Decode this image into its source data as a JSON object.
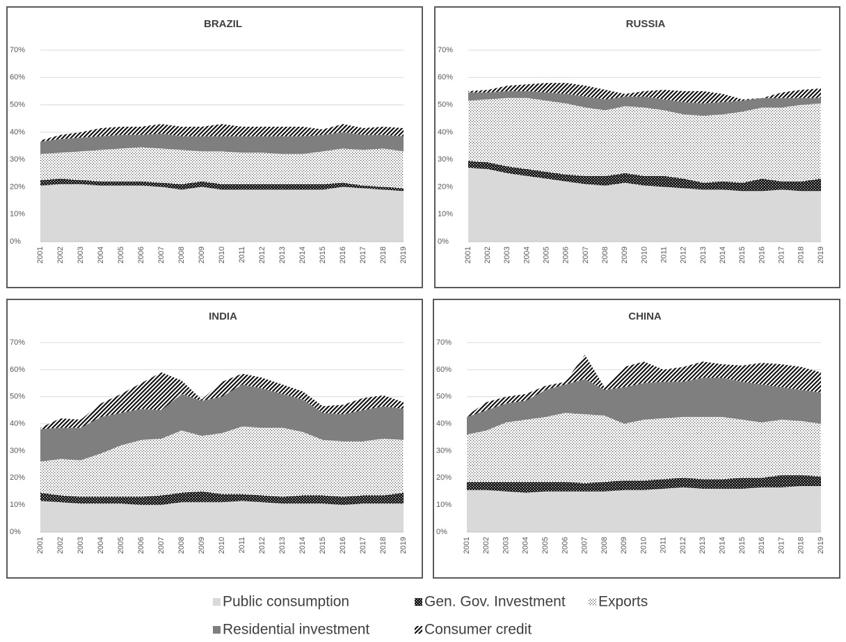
{
  "chart_data": [
    {
      "type": "area",
      "stacked": true,
      "title": "BRAZIL",
      "categories": [
        "2001",
        "2002",
        "2003",
        "2004",
        "2005",
        "2006",
        "2007",
        "2008",
        "2009",
        "2010",
        "2011",
        "2012",
        "2013",
        "2014",
        "2015",
        "2016",
        "2017",
        "2018",
        "2019"
      ],
      "ylim": [
        0,
        70
      ],
      "grid": true,
      "yticks": [
        {
          "value": 0,
          "label": "0%"
        },
        {
          "value": 10,
          "label": "10%"
        },
        {
          "value": 20,
          "label": "20%"
        },
        {
          "value": 30,
          "label": "30%"
        },
        {
          "value": 40,
          "label": "40%"
        },
        {
          "value": 50,
          "label": "50%"
        },
        {
          "value": 60,
          "label": "60%"
        },
        {
          "value": 70,
          "label": "70%"
        }
      ],
      "series": [
        {
          "values": [
            20.5,
            21,
            21,
            20.5,
            20.5,
            20.5,
            20,
            19,
            20,
            19,
            19,
            19,
            19,
            19,
            19,
            20,
            19.5,
            19,
            18.5
          ]
        },
        {
          "values": [
            2,
            2,
            1.5,
            1.5,
            1.5,
            1.5,
            1.5,
            2,
            2,
            2,
            2,
            2,
            2,
            2,
            2,
            1.5,
            1,
            1,
            1
          ]
        },
        {
          "values": [
            9.5,
            9.5,
            10.5,
            11.5,
            12,
            12.5,
            12.5,
            12.5,
            11,
            12,
            11.5,
            11.5,
            11,
            11,
            12,
            12.5,
            13,
            14,
            13.5
          ]
        },
        {
          "values": [
            4.5,
            5,
            5,
            5,
            5,
            4.5,
            5.5,
            5,
            5.5,
            5.5,
            6,
            6,
            6.5,
            6.5,
            6,
            6,
            5.5,
            5,
            5.5
          ]
        },
        {
          "values": [
            0.5,
            1.5,
            2,
            3,
            3,
            3,
            3.5,
            3.5,
            3.5,
            4.5,
            3.5,
            3.5,
            3.5,
            3.5,
            2,
            3,
            2.5,
            3,
            3
          ]
        }
      ]
    },
    {
      "type": "area",
      "stacked": true,
      "title": "RUSSIA",
      "categories": [
        "2001",
        "2002",
        "2003",
        "2004",
        "2005",
        "2006",
        "2007",
        "2008",
        "2009",
        "2010",
        "2011",
        "2012",
        "2013",
        "2014",
        "2015",
        "2016",
        "2017",
        "2018",
        "2019"
      ],
      "ylim": [
        0,
        70
      ],
      "grid": true,
      "yticks": [
        {
          "value": 0,
          "label": "0%"
        },
        {
          "value": 10,
          "label": "10%"
        },
        {
          "value": 20,
          "label": "20%"
        },
        {
          "value": 30,
          "label": "30%"
        },
        {
          "value": 40,
          "label": "40%"
        },
        {
          "value": 50,
          "label": "50%"
        },
        {
          "value": 60,
          "label": "60%"
        },
        {
          "value": 70,
          "label": "70%"
        }
      ],
      "series": [
        {
          "values": [
            27,
            26.5,
            25,
            24,
            23,
            22,
            21,
            20.5,
            21.5,
            20.5,
            20,
            19.5,
            19,
            19,
            18.5,
            18.5,
            19,
            18.5,
            18.5
          ]
        },
        {
          "values": [
            2.5,
            2.5,
            2.5,
            2.5,
            2.5,
            2.5,
            3,
            3.5,
            3.5,
            3.5,
            4,
            3.5,
            2.5,
            3,
            3,
            4.5,
            3,
            3.5,
            4.5
          ]
        },
        {
          "values": [
            22,
            23,
            25,
            26,
            26,
            26,
            25,
            24,
            24.5,
            25,
            24,
            23.5,
            24.5,
            24.5,
            26,
            26,
            27,
            28,
            27.5
          ]
        },
        {
          "values": [
            3,
            2.5,
            2.5,
            2.5,
            3,
            3.5,
            4,
            4,
            3.5,
            4,
            4,
            4.5,
            4.5,
            4.5,
            4,
            3.5,
            3.5,
            2.5,
            2
          ]
        },
        {
          "values": [
            0.5,
            1,
            2,
            2.5,
            3.5,
            4,
            4,
            3.5,
            1,
            2,
            3.5,
            4,
            4.5,
            3,
            0.5,
            0,
            2,
            3,
            3.5
          ]
        }
      ]
    },
    {
      "type": "area",
      "stacked": true,
      "title": "INDIA",
      "categories": [
        "2001",
        "2002",
        "2003",
        "2004",
        "2005",
        "2006",
        "2007",
        "2008",
        "2009",
        "2010",
        "2011",
        "2012",
        "2013",
        "2014",
        "2015",
        "2016",
        "2017",
        "2018",
        "2019"
      ],
      "ylim": [
        0,
        70
      ],
      "grid": true,
      "yticks": [
        {
          "value": 0,
          "label": "0%"
        },
        {
          "value": 10,
          "label": "10%"
        },
        {
          "value": 20,
          "label": "20%"
        },
        {
          "value": 30,
          "label": "30%"
        },
        {
          "value": 40,
          "label": "40%"
        },
        {
          "value": 50,
          "label": "50%"
        },
        {
          "value": 60,
          "label": "60%"
        },
        {
          "value": 70,
          "label": "70%"
        }
      ],
      "series": [
        {
          "values": [
            11.5,
            11,
            10.5,
            10.5,
            10.5,
            10,
            10,
            11,
            11,
            11,
            11.5,
            11,
            10.5,
            10.5,
            10.5,
            10,
            10.5,
            10.5,
            10.5
          ]
        },
        {
          "values": [
            3,
            2.5,
            2.5,
            2.5,
            2.5,
            3,
            3.5,
            3.5,
            4,
            3,
            2.5,
            2.5,
            2.5,
            3,
            3,
            3,
            3,
            3,
            4
          ]
        },
        {
          "values": [
            11.5,
            13.5,
            13.5,
            16,
            19,
            21,
            21,
            23,
            20.5,
            22.5,
            25,
            25,
            25.5,
            23.5,
            20.5,
            20.5,
            20,
            21,
            19.5
          ]
        },
        {
          "values": [
            12,
            11.5,
            12,
            13.5,
            12,
            11.5,
            10.5,
            13.5,
            13,
            13.5,
            15.5,
            14.5,
            12.5,
            12,
            10,
            10,
            11.5,
            12,
            11.5
          ]
        },
        {
          "values": [
            0.5,
            3.5,
            3,
            5,
            7,
            9.5,
            14,
            5,
            0.5,
            5.5,
            4,
            4,
            3.5,
            3,
            2.5,
            3.5,
            4.5,
            4,
            2.5
          ]
        }
      ]
    },
    {
      "type": "area",
      "stacked": true,
      "title": "CHINA",
      "categories": [
        "2001",
        "2002",
        "2003",
        "2004",
        "2005",
        "2006",
        "2007",
        "2008",
        "2009",
        "2010",
        "2011",
        "2012",
        "2013",
        "2014",
        "2015",
        "2016",
        "2017",
        "2018",
        "2019"
      ],
      "ylim": [
        0,
        70
      ],
      "grid": true,
      "yticks": [
        {
          "value": 0,
          "label": "0%"
        },
        {
          "value": 10,
          "label": "10%"
        },
        {
          "value": 20,
          "label": "20%"
        },
        {
          "value": 30,
          "label": "30%"
        },
        {
          "value": 40,
          "label": "40%"
        },
        {
          "value": 50,
          "label": "50%"
        },
        {
          "value": 60,
          "label": "60%"
        },
        {
          "value": 70,
          "label": "70%"
        }
      ],
      "series": [
        {
          "values": [
            15.5,
            15.5,
            15,
            14.5,
            15,
            15,
            15,
            15,
            15.5,
            15.5,
            16,
            16.5,
            16,
            16,
            16,
            16.5,
            16.5,
            17,
            17
          ]
        },
        {
          "values": [
            3,
            3,
            3.5,
            4,
            3.5,
            3.5,
            3,
            3.5,
            3.5,
            3.5,
            3.5,
            3.5,
            3.5,
            3.5,
            4,
            3.5,
            4.5,
            4,
            3.5
          ]
        },
        {
          "values": [
            17.5,
            19,
            22,
            23,
            24,
            25.5,
            25.5,
            24.5,
            21,
            22.5,
            22.5,
            22.5,
            23,
            23,
            21.5,
            20.5,
            20.5,
            20,
            19.5
          ]
        },
        {
          "values": [
            6.5,
            7.5,
            7,
            7,
            10,
            10.5,
            13,
            9.5,
            13.5,
            13.5,
            13.5,
            13,
            14.5,
            14.5,
            14,
            14,
            12,
            11.5,
            11.5
          ]
        },
        {
          "values": [
            0.5,
            3,
            2.5,
            2.5,
            1.5,
            1,
            9,
            1,
            7.5,
            8,
            4.5,
            5.5,
            6,
            5,
            6,
            8,
            8.5,
            8.5,
            7.5
          ]
        }
      ]
    }
  ],
  "legend": [
    {
      "name": "Public consumption",
      "color": "#d9d9d9",
      "pattern": "solid"
    },
    {
      "name": "Gen. Gov. Investment",
      "color": "#111111",
      "pattern": "dots",
      "pattern_color": "#ffffff"
    },
    {
      "name": "Exports",
      "color": "#ffffff",
      "pattern": "dots",
      "pattern_color": "#444444"
    },
    {
      "name": "Residential investment",
      "color": "#7f7f7f",
      "pattern": "solid"
    },
    {
      "name": "Consumer credit",
      "color": "#ffffff",
      "pattern": "stripes",
      "pattern_color": "#111111"
    }
  ]
}
